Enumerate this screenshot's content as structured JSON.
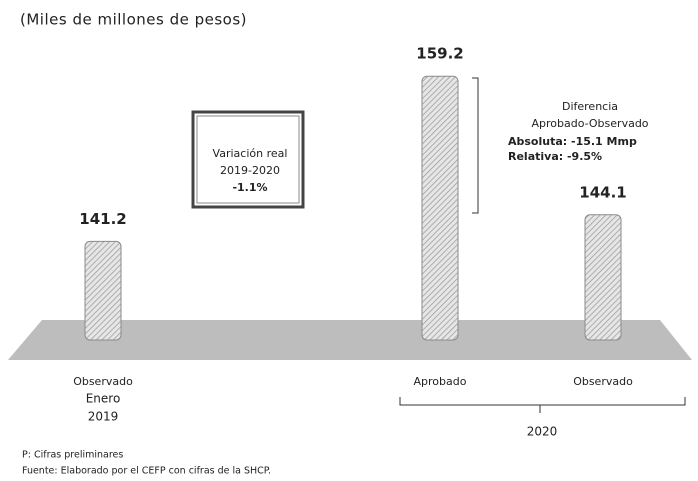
{
  "chart_data": {
    "type": "bar",
    "subtitle": "(Miles de millones de pesos)",
    "categories": [
      "Observado",
      "Aprobado",
      "Observado"
    ],
    "values": [
      141.2,
      159.2,
      144.1
    ],
    "color": "#c8c8c8",
    "ylim": [
      131,
      165
    ],
    "period_labels": {
      "first": [
        "Enero",
        "2019"
      ],
      "second": "2020"
    },
    "annotations": {
      "variation_box": [
        "Variación real",
        "2019-2020",
        "-1.1%"
      ],
      "difference": [
        "Diferencia",
        "Aprobado-Observado",
        "Absoluta: -15.1 Mmp",
        "Relativa: -9.5%"
      ]
    },
    "notes": [
      "P: Cifras preliminares",
      "Fuente: Elaborado por el CEFP con cifras de la SHCP."
    ]
  }
}
